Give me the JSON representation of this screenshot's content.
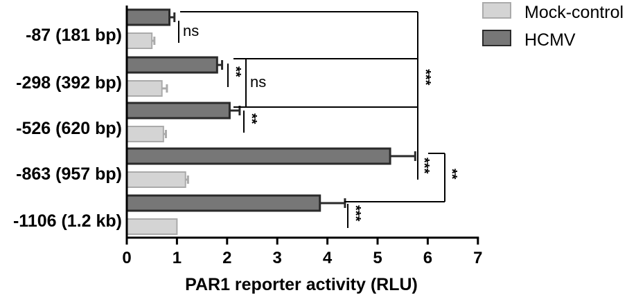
{
  "chart_data": {
    "type": "bar",
    "orientation": "horizontal",
    "categories": [
      "-87 (181 bp)",
      "-298 (392 bp)",
      "-526 (620 bp)",
      "-863 (957 bp)",
      "-1106 (1.2 kb)"
    ],
    "series": [
      {
        "name": "HCMV",
        "values": [
          0.85,
          1.8,
          2.05,
          5.25,
          3.85
        ],
        "errors": [
          0.1,
          0.1,
          0.2,
          0.5,
          0.5
        ],
        "color": "#777777"
      },
      {
        "name": "Mock-control",
        "values": [
          0.5,
          0.7,
          0.73,
          1.17,
          1.0
        ],
        "errors": [
          0.05,
          0.1,
          0.05,
          0.05,
          0.0
        ],
        "color": "#d4d4d4"
      }
    ],
    "xlabel": "PAR1 reporter activity (RLU)",
    "xlim": [
      0,
      7
    ],
    "xticks": [
      "0",
      "1",
      "2",
      "3",
      "4",
      "5",
      "6",
      "7"
    ],
    "legend_position": "top-right",
    "annotations": [
      {
        "text": "ns",
        "compares": "-87 HCMV vs Mock"
      },
      {
        "text": "**",
        "compares": "-298 HCMV vs Mock"
      },
      {
        "text": "ns",
        "compares": "-298 HCMV vs -526 HCMV"
      },
      {
        "text": "**",
        "compares": "-526 HCMV vs Mock"
      },
      {
        "text": "***",
        "compares": "-87 HCMV vs -863 HCMV"
      },
      {
        "text": "***",
        "compares": "-863 HCMV vs Mock"
      },
      {
        "text": "**",
        "compares": "-863 HCMV vs -1106 HCMV"
      },
      {
        "text": "***",
        "compares": "-1106 HCMV vs Mock"
      }
    ]
  },
  "colors": {
    "hcmv": "#777777",
    "mock": "#d4d4d4",
    "mock_stroke": "#aaaaaa",
    "hcmv_stroke": "#2a2a2a"
  }
}
